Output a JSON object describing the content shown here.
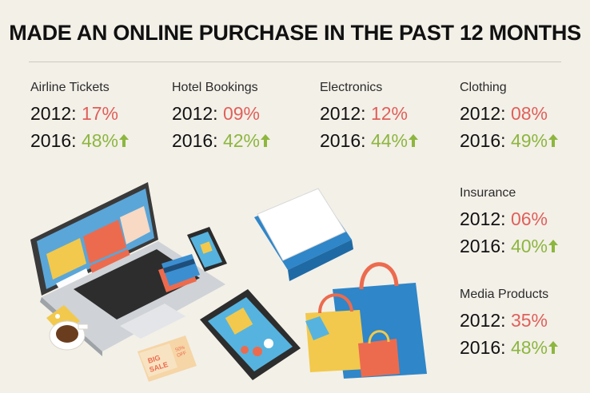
{
  "title": "MADE AN ONLINE PURCHASE IN THE PAST 12 MONTHS",
  "colors": {
    "decrease_value": "#e0605a",
    "increase_value": "#8db63f",
    "background": "#f3f0e8"
  },
  "categories": [
    {
      "name": "Airline Tickets",
      "label_2012": "2012:",
      "value_2012": "17%",
      "label_2016": "2016:",
      "value_2016": "48%",
      "trend_icon": "arrow-up-icon"
    },
    {
      "name": "Hotel Bookings",
      "label_2012": "2012:",
      "value_2012": "09%",
      "label_2016": "2016:",
      "value_2016": "42%",
      "trend_icon": "arrow-up-icon"
    },
    {
      "name": "Electronics",
      "label_2012": "2012:",
      "value_2012": "12%",
      "label_2016": "2016:",
      "value_2016": "44%",
      "trend_icon": "arrow-up-icon"
    },
    {
      "name": "Clothing",
      "label_2012": "2012:",
      "value_2012": "08%",
      "label_2016": "2016:",
      "value_2016": "49%",
      "trend_icon": "arrow-up-icon"
    },
    {
      "name": "Insurance",
      "label_2012": "2012:",
      "value_2012": "06%",
      "label_2016": "2016:",
      "value_2016": "40%",
      "trend_icon": "arrow-up-icon"
    },
    {
      "name": "Media Products",
      "label_2012": "2012:",
      "value_2012": "35%",
      "label_2016": "2016:",
      "value_2016": "48%",
      "trend_icon": "arrow-up-icon"
    }
  ],
  "illustration": {
    "items": [
      "laptop-icon",
      "smartphone-icon",
      "credit-card-icon",
      "coffee-cup-icon",
      "price-tag-icon",
      "tablet-icon",
      "coupon-icon",
      "box-icon",
      "shopping-bag-icon"
    ],
    "coupon_text": [
      "BIG",
      "SALE",
      "50%",
      "OFF"
    ]
  }
}
